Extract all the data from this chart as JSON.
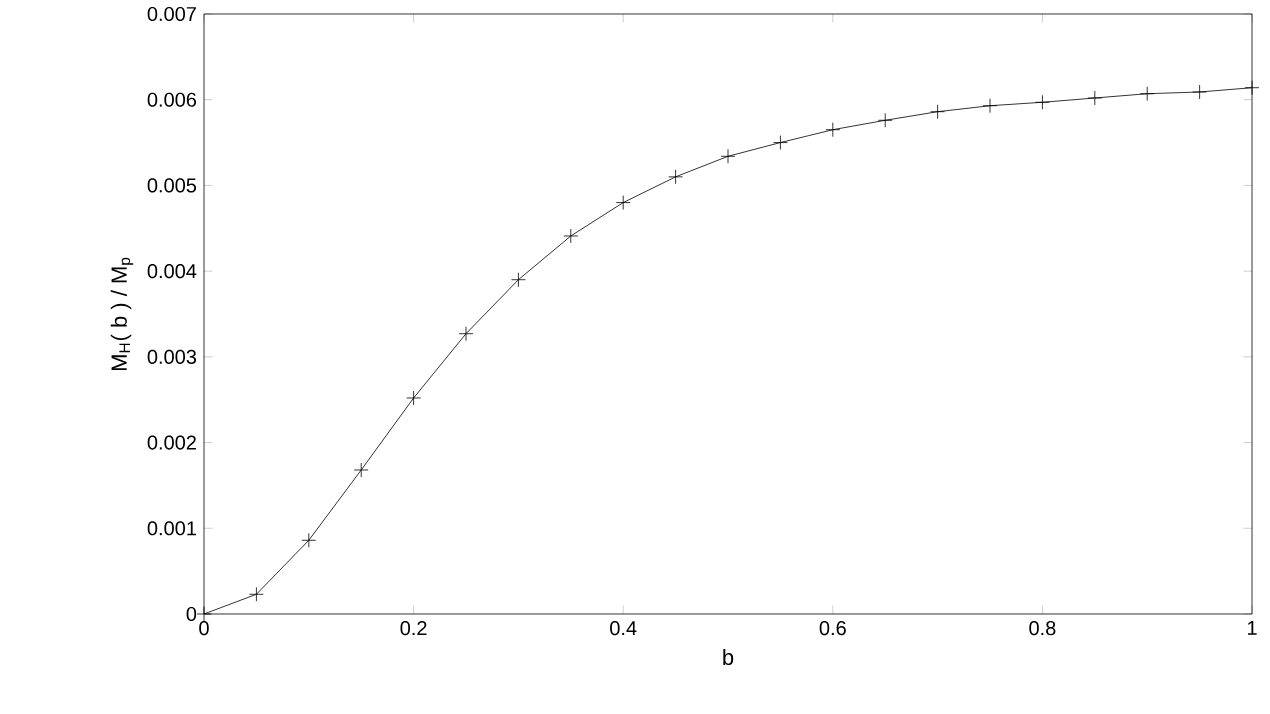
{
  "chart_data": {
    "type": "line",
    "xlabel": "b",
    "ylabel": "M$_{H}$( b )  /  M$_{p}$",
    "x": [
      0,
      0.05,
      0.1,
      0.15,
      0.2,
      0.25,
      0.3,
      0.35,
      0.4,
      0.45,
      0.5,
      0.55,
      0.6,
      0.65,
      0.7,
      0.75,
      0.8,
      0.85,
      0.9,
      0.95,
      1.0
    ],
    "series": [
      {
        "color": "#000000",
        "values": [
          0,
          0.00023,
          0.00086,
          0.00168,
          0.00252,
          0.00327,
          0.0039,
          0.00441,
          0.0048,
          0.0051,
          0.00534,
          0.0055,
          0.00565,
          0.00576,
          0.00586,
          0.00593,
          0.00597,
          0.00602,
          0.00607,
          0.00609,
          0.00614
        ]
      }
    ],
    "xlim": [
      0,
      1
    ],
    "ylim": [
      0,
      0.007
    ],
    "xticks": [
      0,
      0.2,
      0.4,
      0.6,
      0.8,
      1
    ],
    "yticks": [
      0,
      0.001,
      0.002,
      0.003,
      0.004,
      0.005,
      0.006,
      0.007
    ],
    "marker": "cross",
    "line_style": "solid"
  }
}
